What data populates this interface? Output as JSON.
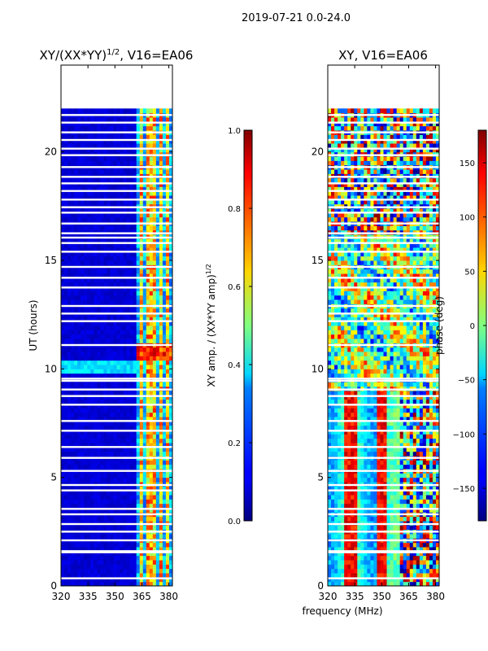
{
  "figure": {
    "suptitle": "2019-07-21 0.0-24.0",
    "xlabel_shared": "frequency (MHz)"
  },
  "chart_data": [
    {
      "type": "heatmap",
      "title": "XY/(XX*YY)^{1/2}, V16=EA06",
      "title_main": "XY/(XX*YY)",
      "title_sup": "1/2",
      "title_rest": ", V16=EA06",
      "xlabel": "",
      "ylabel": "UT (hours)",
      "xlim": [
        320,
        382
      ],
      "ylim": [
        0,
        24
      ],
      "xticks": [
        320,
        335,
        350,
        365,
        380
      ],
      "yticks": [
        0,
        5,
        10,
        15,
        20
      ],
      "data_ends_hours": 22,
      "bright_channels_mhz": [
        364,
        368,
        371,
        375,
        379
      ],
      "colormap": "jet",
      "colorbar": {
        "label": "XY amp. / (XX*YY amp)^{1/2}",
        "label_main": "XY amp. / (XX*YY amp)",
        "label_sup": "1/2",
        "range": [
          0.0,
          1.0
        ],
        "ticks": [
          "0.0",
          "0.2",
          "0.4",
          "0.6",
          "0.8",
          "1.0"
        ],
        "tick_values": [
          0.0,
          0.2,
          0.4,
          0.6,
          0.8,
          1.0
        ]
      }
    },
    {
      "type": "heatmap",
      "title": "XY, V16=EA06",
      "xlabel": "",
      "ylabel": "",
      "xlim": [
        320,
        382
      ],
      "ylim": [
        0,
        24
      ],
      "xticks": [
        320,
        335,
        350,
        365,
        380
      ],
      "yticks": [
        0,
        5,
        10,
        15,
        20
      ],
      "data_ends_hours": 22,
      "colormap": "jet",
      "colorbar": {
        "label": "phase (deg)",
        "range": [
          -180,
          180
        ],
        "ticks": [
          "−150",
          "−100",
          "−50",
          "0",
          "50",
          "100",
          "150"
        ],
        "tick_values": [
          -150,
          -100,
          -50,
          0,
          50,
          100,
          150
        ]
      }
    }
  ],
  "flagged_hours": [
    0.35,
    1.55,
    1.6,
    2.1,
    2.5,
    2.85,
    3.3,
    3.55,
    4.4,
    4.65,
    5.3,
    5.9,
    6.4,
    7.15,
    7.6,
    8.35,
    8.75,
    9.05,
    9.45,
    9.55,
    11.1,
    12.2,
    12.55,
    12.9,
    13.75,
    14.2,
    14.7,
    15.4,
    15.8,
    16.05,
    16.25,
    16.7,
    17.2,
    17.45,
    17.8,
    18.2,
    18.55,
    18.85,
    19.3,
    19.85,
    20.15,
    20.55,
    20.9,
    21.35,
    21.7
  ]
}
